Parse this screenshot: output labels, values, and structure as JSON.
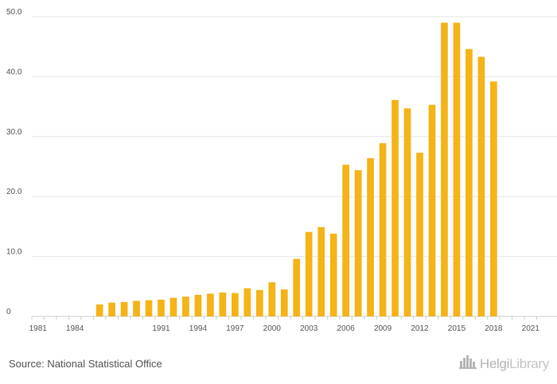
{
  "footer": {
    "source": "Source: National Statistical Office",
    "logo_text_a": "Helgi",
    "logo_text_b": "Library",
    "logo_icon": "city-skyline-icon"
  },
  "colors": {
    "bar": "#f5b316",
    "grid": "#e6e6e6",
    "axis": "#cccccc",
    "tick_text": "#555555"
  },
  "chart_data": {
    "type": "bar",
    "title": "",
    "xlabel": "",
    "ylabel": "",
    "ylim": [
      0,
      50
    ],
    "yticks": [
      {
        "value": 0,
        "label": "0"
      },
      {
        "value": 10,
        "label": "10.0"
      },
      {
        "value": 20,
        "label": "20.0"
      },
      {
        "value": 30,
        "label": "30.0"
      },
      {
        "value": 40,
        "label": "40.0"
      },
      {
        "value": 50,
        "label": "50.0"
      }
    ],
    "xtick_labels": [
      "1981",
      "1984",
      "1991",
      "1994",
      "1997",
      "2000",
      "2003",
      "2006",
      "2009",
      "2012",
      "2015",
      "2018",
      "2021"
    ],
    "grid": true,
    "legend": "none",
    "categories": [
      1981,
      1982,
      1983,
      1984,
      1985,
      1986,
      1987,
      1988,
      1989,
      1990,
      1991,
      1992,
      1993,
      1994,
      1995,
      1996,
      1997,
      1998,
      1999,
      2000,
      2001,
      2002,
      2003,
      2004,
      2005,
      2006,
      2007,
      2008,
      2009,
      2010,
      2011,
      2012,
      2013,
      2014,
      2015,
      2016,
      2017,
      2018,
      2019,
      2020,
      2021,
      2022
    ],
    "values": [
      null,
      null,
      null,
      null,
      null,
      2.0,
      2.3,
      2.4,
      2.6,
      2.7,
      2.8,
      3.1,
      3.3,
      3.6,
      3.8,
      4.0,
      3.9,
      4.7,
      4.4,
      5.7,
      4.5,
      9.6,
      14.1,
      14.9,
      13.8,
      25.3,
      24.4,
      26.4,
      28.9,
      36.1,
      34.7,
      27.3,
      35.3,
      49.0,
      49.0,
      44.6,
      43.3,
      39.2,
      null,
      null,
      null,
      null
    ]
  }
}
